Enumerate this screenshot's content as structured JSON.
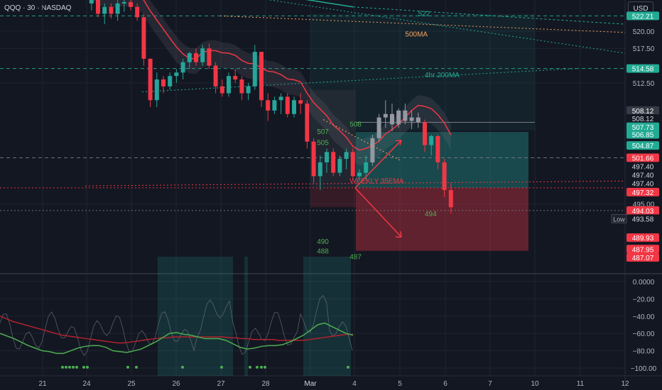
{
  "header": {
    "symbol_label": "QQQ · 30 · NASDAQ"
  },
  "currency_button": "USD",
  "colors": {
    "bull": "#26a69a",
    "bear": "#f23645",
    "grid": "#1f2430",
    "ma_red": "#f23645",
    "sma_green": "#4caf50",
    "dark_red": "#b2222e",
    "teal": "#22ab94",
    "orange": "#f5a35c"
  },
  "chart_data": [
    {
      "type": "candlestick",
      "title": "",
      "price_axis": {
        "min": 485.5,
        "max": 524.5,
        "ticks": [
          520.0,
          517.5,
          512.5,
          495.0
        ]
      },
      "time_axis": {
        "labels": [
          "21",
          "24",
          "25",
          "26",
          "27",
          "28",
          "Mar",
          "4",
          "5",
          "6",
          "7",
          "10",
          "11",
          "12"
        ]
      },
      "candles": [
        [
          524,
          525,
          523,
          524.8
        ],
        [
          524.8,
          525,
          522,
          522.5
        ],
        [
          522.5,
          524,
          521,
          523.5
        ],
        [
          523.5,
          524,
          521.8,
          522.5
        ],
        [
          522.5,
          524.5,
          521.5,
          524
        ],
        [
          524,
          524.8,
          522.8,
          524.2
        ],
        [
          524.2,
          524.6,
          523,
          523.5
        ],
        [
          523.5,
          524,
          521.5,
          522
        ],
        [
          522,
          522.5,
          515,
          516
        ],
        [
          516,
          516,
          509,
          510
        ],
        [
          510,
          514,
          509,
          513
        ],
        [
          513,
          513.5,
          511,
          512
        ],
        [
          512,
          514,
          511.5,
          513.5
        ],
        [
          513.5,
          514.5,
          512.5,
          514
        ],
        [
          514,
          516,
          513,
          515.5
        ],
        [
          515.5,
          517,
          514.5,
          516.8
        ],
        [
          516.8,
          517.5,
          515,
          515.5
        ],
        [
          515.5,
          518,
          515,
          517.5
        ],
        [
          517.5,
          518.2,
          514.5,
          515
        ],
        [
          515,
          515.5,
          511,
          512
        ],
        [
          512,
          513,
          510.5,
          511
        ],
        [
          511,
          514,
          510.5,
          513.5
        ],
        [
          513.5,
          514.5,
          512.5,
          513
        ],
        [
          513,
          513.5,
          510,
          511
        ],
        [
          511,
          512.5,
          510,
          512
        ],
        [
          512,
          518,
          511.5,
          517
        ],
        [
          517,
          517,
          509,
          510
        ],
        [
          510,
          511,
          507,
          508.5
        ],
        [
          508.5,
          510.5,
          508,
          510
        ],
        [
          510,
          511,
          508,
          510.5
        ],
        [
          510.5,
          511,
          507.5,
          508
        ],
        [
          508,
          510.5,
          507.5,
          510
        ],
        [
          510,
          511,
          508,
          509.5
        ],
        [
          509.5,
          510,
          503,
          504
        ],
        [
          504,
          504.5,
          498,
          499
        ],
        [
          499,
          502,
          497,
          501
        ],
        [
          501,
          503,
          499.5,
          502.5
        ],
        [
          502.5,
          503,
          499,
          499.5
        ],
        [
          499.5,
          502,
          499,
          501.5
        ],
        [
          501.5,
          503,
          500,
          502.5
        ],
        [
          502.5,
          503,
          498.5,
          499
        ],
        [
          499,
          500,
          498.5,
          499.5
        ],
        [
          499.5,
          502,
          498.5,
          501
        ],
        [
          501,
          505,
          500.5,
          504.5
        ],
        [
          504.5,
          508,
          504,
          507.5
        ],
        [
          507.5,
          510,
          506,
          508
        ],
        [
          508,
          509.5,
          505.5,
          506.5
        ],
        [
          506.5,
          508.8,
          506,
          508.5
        ],
        [
          508.5,
          509.5,
          506.5,
          507
        ],
        [
          507,
          508.5,
          505.8,
          507.5
        ],
        [
          507.5,
          508.2,
          506,
          506.8
        ],
        [
          506.8,
          507.2,
          502.5,
          503.5
        ],
        [
          503.5,
          505,
          502,
          504.8
        ],
        [
          504.8,
          505,
          500,
          501
        ],
        [
          501,
          501.5,
          496,
          497
        ],
        [
          497,
          498,
          493.6,
          494.5
        ]
      ],
      "horizontal_levels": [
        {
          "price": 522.21,
          "label": "522.21",
          "color": "#22ab94",
          "style": "dashed"
        },
        {
          "price": 514.58,
          "label": "514.58",
          "color": "#22ab94",
          "style": "dashed"
        },
        {
          "price": 501.66,
          "label": "501.66",
          "color": "#787b86",
          "style": "dashed"
        },
        {
          "price": 497.32,
          "label": "497.32",
          "color": "#f23645",
          "style": "dotted"
        },
        {
          "price": 494.03,
          "label": "494.03",
          "color": "#787b86",
          "style": "dotted"
        }
      ],
      "axis_badges": [
        {
          "price": 522.21,
          "text": "522.21",
          "bg": "#22ab94"
        },
        {
          "price": 514.58,
          "text": "514.58",
          "bg": "#22ab94"
        },
        {
          "price": 508.5,
          "text": "508.12",
          "bg": "#363a45"
        },
        {
          "price": 507.35,
          "text": "508.12",
          "bg": "#131722",
          "fg": "#d1d4dc"
        },
        {
          "price": 506.15,
          "text": "507.73",
          "bg": "#22ab94"
        },
        {
          "price": 505.05,
          "text": "506.85",
          "bg": "#22ab94"
        },
        {
          "price": 503.45,
          "text": "504.87",
          "bg": "#22ab94"
        },
        {
          "price": 501.66,
          "text": "501.66",
          "bg": "#f23645"
        },
        {
          "price": 500.45,
          "text": "497.40",
          "bg": "#131722",
          "fg": "#d1d4dc"
        },
        {
          "price": 499.2,
          "text": "497.40",
          "bg": "#131722",
          "fg": "#d1d4dc"
        },
        {
          "price": 497.95,
          "text": "497.40",
          "bg": "#131722",
          "fg": "#d1d4dc"
        },
        {
          "price": 496.7,
          "text": "497.32",
          "bg": "#f23645"
        },
        {
          "price": 494.03,
          "text": "494.03",
          "bg": "#f23645"
        },
        {
          "price": 492.85,
          "text": "493.58",
          "bg": "#131722",
          "fg": "#d1d4dc"
        },
        {
          "price": 490.1,
          "text": "489.93",
          "bg": "#f23645"
        },
        {
          "price": 488.45,
          "text": "487.95",
          "bg": "#f23645"
        },
        {
          "price": 487.25,
          "text": "487.07",
          "bg": "#f23645"
        }
      ],
      "low_label": "Low",
      "annotations": [
        {
          "text": "522",
          "price": 522.5,
          "idx": 64,
          "color": "#22ab94"
        },
        {
          "text": "500MA",
          "price": 519.5,
          "idx": 62,
          "color": "#f5a35c"
        },
        {
          "text": "4hr 200MA",
          "price": 513.6,
          "idx": 65,
          "color": "#22ab94"
        },
        {
          "text": "507",
          "price": 505.4,
          "idx": 48.5,
          "color": "#4caf50"
        },
        {
          "text": "505",
          "price": 503.8,
          "idx": 48.5,
          "color": "#4caf50"
        },
        {
          "text": "508",
          "price": 506.5,
          "idx": 53.5,
          "color": "#4caf50"
        },
        {
          "text": "WEEKLY 35EMA",
          "price": 498.3,
          "idx": 53.5,
          "color": "#f23645"
        },
        {
          "text": "494",
          "price": 493.5,
          "idx": 65,
          "color": "#4caf50"
        },
        {
          "text": "490",
          "price": 489.5,
          "idx": 48.5,
          "color": "#4caf50"
        },
        {
          "text": "488",
          "price": 488.1,
          "idx": 48.5,
          "color": "#4caf50"
        },
        {
          "text": "487",
          "price": 487.3,
          "idx": 53.5,
          "color": "#4caf50"
        }
      ]
    },
    {
      "type": "line",
      "title": "",
      "ylim": [
        -104,
        4
      ],
      "y_ticks": [
        0,
        -20,
        -40,
        -60,
        -80,
        -100
      ],
      "y_tick_labels": [
        "0.0000",
        "−20.00",
        "−40.00",
        "−60.00",
        "−80.00",
        "−100.00"
      ],
      "series": [
        {
          "name": "",
          "color": "#b2222e",
          "values": [
            -40,
            -43,
            -46,
            -48,
            -50,
            -52,
            -54,
            -56,
            -58,
            -60,
            -62,
            -63,
            -64,
            -65,
            -66,
            -67,
            -68,
            -69,
            -70,
            -71,
            -71,
            -70,
            -69,
            -68,
            -67,
            -66,
            -65,
            -65,
            -64,
            -64,
            -64,
            -64,
            -64,
            -64,
            -64,
            -64,
            -64,
            -65,
            -65,
            -66,
            -66,
            -67,
            -67,
            -67,
            -67,
            -68,
            -68,
            -68,
            -68,
            -68,
            -67,
            -66,
            -65,
            -64,
            -63,
            -62,
            -61,
            -61
          ]
        },
        {
          "name": "",
          "color": "#4caf50",
          "values": [
            -60,
            -63,
            -66,
            -70,
            -74,
            -77,
            -80,
            -81,
            -83,
            -83,
            -80,
            -77,
            -75,
            -74,
            -74,
            -76,
            -80,
            -81,
            -82,
            -80,
            -78,
            -74,
            -70,
            -65,
            -60,
            -59,
            -61,
            -62,
            -64,
            -66,
            -66,
            -66,
            -68,
            -72,
            -76,
            -78,
            -77,
            -75,
            -74,
            -74,
            -73,
            -70,
            -66,
            -62,
            -56,
            -50,
            -48,
            -52,
            -56,
            -60,
            -62
          ]
        }
      ]
    }
  ]
}
